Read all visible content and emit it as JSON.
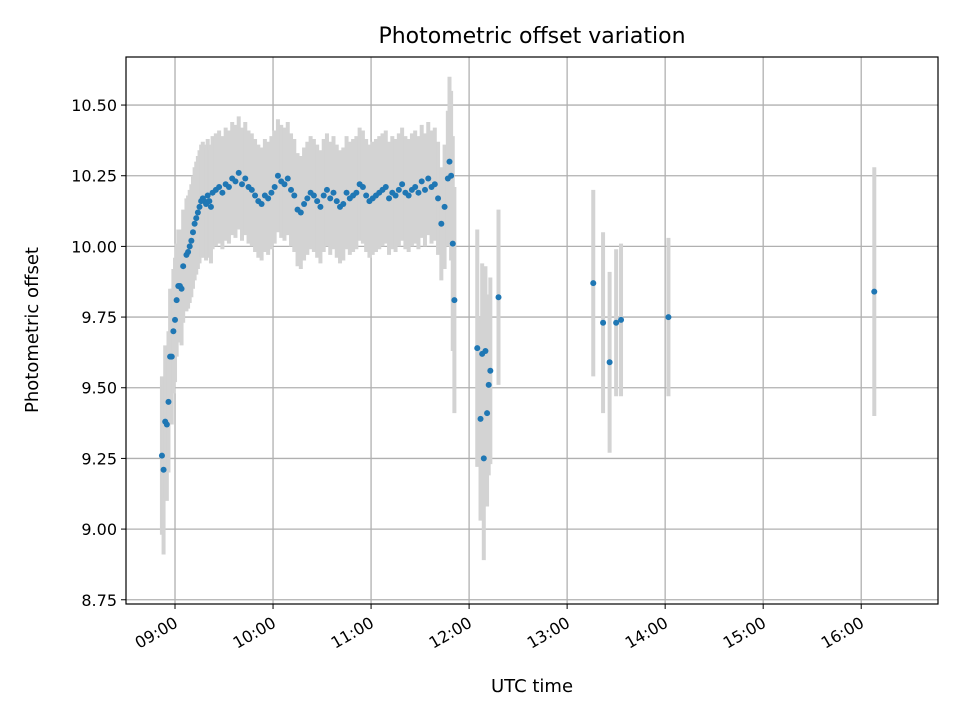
{
  "chart_data": {
    "type": "scatter",
    "title": "Photometric offset variation",
    "xlabel": "UTC time",
    "ylabel": "Photometric offset",
    "grid": true,
    "legend": "none",
    "xlim": [
      "08:30",
      "16:47"
    ],
    "ylim": [
      8.735,
      10.67
    ],
    "x_ticks": [
      "09:00",
      "10:00",
      "11:00",
      "12:00",
      "13:00",
      "14:00",
      "15:00",
      "16:00"
    ],
    "y_ticks": [
      "8.75",
      "9.00",
      "9.25",
      "9.50",
      "9.75",
      "10.00",
      "10.25",
      "10.50"
    ],
    "point_color": "#1f77b4",
    "errorbar_color": "#d3d3d3",
    "series": [
      {
        "x": [
          "08:52",
          "08:53",
          "08:54",
          "08:55",
          "08:56",
          "08:57",
          "08:58",
          "08:59",
          "09:00",
          "09:01",
          "09:02",
          "09:03",
          "09:04",
          "09:05",
          "09:07",
          "09:08",
          "09:09",
          "09:10",
          "09:11",
          "09:12",
          "09:13",
          "09:14",
          "09:15",
          "09:16",
          "09:17",
          "09:18",
          "09:19",
          "09:20",
          "09:21",
          "09:22",
          "09:23",
          "09:25",
          "09:27",
          "09:29",
          "09:31",
          "09:33",
          "09:35",
          "09:37",
          "09:39",
          "09:41",
          "09:43",
          "09:45",
          "09:47",
          "09:49",
          "09:51",
          "09:53",
          "09:55",
          "09:57",
          "09:59",
          "10:01",
          "10:03",
          "10:05",
          "10:07",
          "10:09",
          "10:11",
          "10:13",
          "10:15",
          "10:17",
          "10:19",
          "10:21",
          "10:23",
          "10:25",
          "10:27",
          "10:29",
          "10:31",
          "10:33",
          "10:35",
          "10:37",
          "10:39",
          "10:41",
          "10:43",
          "10:45",
          "10:47",
          "10:49",
          "10:51",
          "10:53",
          "10:55",
          "10:57",
          "10:59",
          "11:01",
          "11:03",
          "11:05",
          "11:07",
          "11:09",
          "11:11",
          "11:13",
          "11:15",
          "11:17",
          "11:19",
          "11:21",
          "11:23",
          "11:25",
          "11:27",
          "11:29",
          "11:31",
          "11:33",
          "11:35",
          "11:37",
          "11:39",
          "11:41",
          "11:43",
          "11:45",
          "11:47",
          "11:48",
          "11:49",
          "11:50",
          "11:51",
          "12:05",
          "12:07",
          "12:08",
          "12:09",
          "12:10",
          "12:11",
          "12:12",
          "12:13",
          "12:18",
          "13:16",
          "13:22",
          "13:26",
          "13:30",
          "13:33",
          "14:02",
          "16:08"
        ],
        "y": [
          9.26,
          9.21,
          9.38,
          9.37,
          9.45,
          9.61,
          9.61,
          9.7,
          9.74,
          9.81,
          9.86,
          9.86,
          9.85,
          9.93,
          9.97,
          9.98,
          10.0,
          10.02,
          10.05,
          10.08,
          10.1,
          10.12,
          10.14,
          10.16,
          10.17,
          10.16,
          10.15,
          10.18,
          10.16,
          10.14,
          10.19,
          10.2,
          10.21,
          10.19,
          10.22,
          10.21,
          10.24,
          10.23,
          10.26,
          10.22,
          10.24,
          10.21,
          10.2,
          10.18,
          10.16,
          10.15,
          10.18,
          10.17,
          10.19,
          10.21,
          10.25,
          10.23,
          10.22,
          10.24,
          10.2,
          10.18,
          10.13,
          10.12,
          10.15,
          10.17,
          10.19,
          10.18,
          10.16,
          10.14,
          10.18,
          10.2,
          10.17,
          10.19,
          10.16,
          10.14,
          10.15,
          10.19,
          10.17,
          10.18,
          10.19,
          10.22,
          10.21,
          10.18,
          10.16,
          10.17,
          10.18,
          10.19,
          10.2,
          10.21,
          10.17,
          10.19,
          10.18,
          10.2,
          10.22,
          10.19,
          10.18,
          10.2,
          10.21,
          10.19,
          10.23,
          10.2,
          10.24,
          10.21,
          10.22,
          10.17,
          10.08,
          10.14,
          10.24,
          10.3,
          10.25,
          10.01,
          9.81,
          9.64,
          9.39,
          9.62,
          9.25,
          9.63,
          9.41,
          9.51,
          9.56,
          9.82,
          9.87,
          9.73,
          9.59,
          9.73,
          9.74,
          9.75,
          9.84
        ],
        "err": [
          0.28,
          0.3,
          0.27,
          0.27,
          0.25,
          0.24,
          0.24,
          0.22,
          0.22,
          0.2,
          0.2,
          0.2,
          0.2,
          0.2,
          0.2,
          0.2,
          0.2,
          0.2,
          0.2,
          0.2,
          0.2,
          0.2,
          0.2,
          0.2,
          0.2,
          0.2,
          0.2,
          0.2,
          0.2,
          0.2,
          0.2,
          0.2,
          0.2,
          0.2,
          0.2,
          0.2,
          0.2,
          0.2,
          0.2,
          0.2,
          0.2,
          0.2,
          0.2,
          0.2,
          0.2,
          0.2,
          0.2,
          0.2,
          0.2,
          0.2,
          0.2,
          0.2,
          0.2,
          0.2,
          0.2,
          0.2,
          0.2,
          0.2,
          0.2,
          0.2,
          0.2,
          0.2,
          0.2,
          0.2,
          0.2,
          0.2,
          0.2,
          0.2,
          0.2,
          0.2,
          0.2,
          0.2,
          0.2,
          0.2,
          0.2,
          0.2,
          0.2,
          0.2,
          0.2,
          0.2,
          0.2,
          0.2,
          0.2,
          0.2,
          0.2,
          0.2,
          0.2,
          0.2,
          0.2,
          0.2,
          0.2,
          0.2,
          0.2,
          0.2,
          0.2,
          0.2,
          0.2,
          0.2,
          0.2,
          0.2,
          0.2,
          0.22,
          0.24,
          0.3,
          0.3,
          0.38,
          0.4,
          0.42,
          0.36,
          0.32,
          0.36,
          0.3,
          0.33,
          0.32,
          0.33,
          0.31,
          0.33,
          0.32,
          0.32,
          0.26,
          0.27,
          0.28,
          0.44
        ]
      }
    ]
  }
}
